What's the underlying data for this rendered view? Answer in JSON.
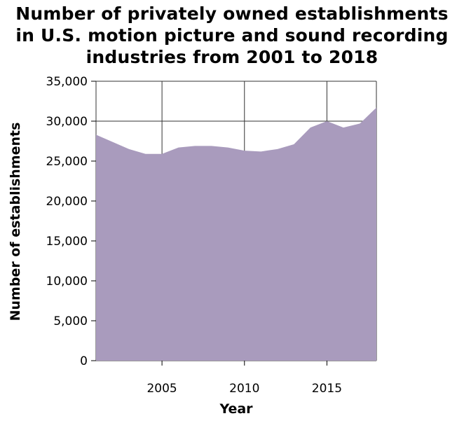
{
  "chart_data": {
    "type": "area",
    "title_lines": [
      "Number of privately owned establishments",
      "in U.S. motion picture and sound recording",
      "industries from 2001 to 2018"
    ],
    "xlabel": "Year",
    "ylabel": "Number of establishments",
    "x": [
      2001,
      2002,
      2003,
      2004,
      2005,
      2006,
      2007,
      2008,
      2009,
      2010,
      2011,
      2012,
      2013,
      2014,
      2015,
      2016,
      2017,
      2018
    ],
    "series": [
      {
        "values": [
          28300,
          27400,
          26500,
          25900,
          25900,
          26700,
          26900,
          26900,
          26700,
          26300,
          26200,
          26500,
          27100,
          29200,
          30000,
          29200,
          29700,
          31700
        ]
      }
    ],
    "xlim": [
      2001,
      2018
    ],
    "ylim": [
      0,
      35000
    ],
    "x_ticks": [
      2005,
      2010,
      2015
    ],
    "x_tick_labels": [
      "2005",
      "2010",
      "2015"
    ],
    "y_ticks": [
      0,
      5000,
      10000,
      15000,
      20000,
      25000,
      30000,
      35000
    ],
    "y_tick_labels": [
      "0",
      "5,000",
      "10,000",
      "15,000",
      "20,000",
      "25,000",
      "30,000",
      "35,000"
    ],
    "grid": true,
    "colors": {
      "fill": "#a99bbd",
      "grid": "#333333",
      "axis": "#000000"
    }
  }
}
